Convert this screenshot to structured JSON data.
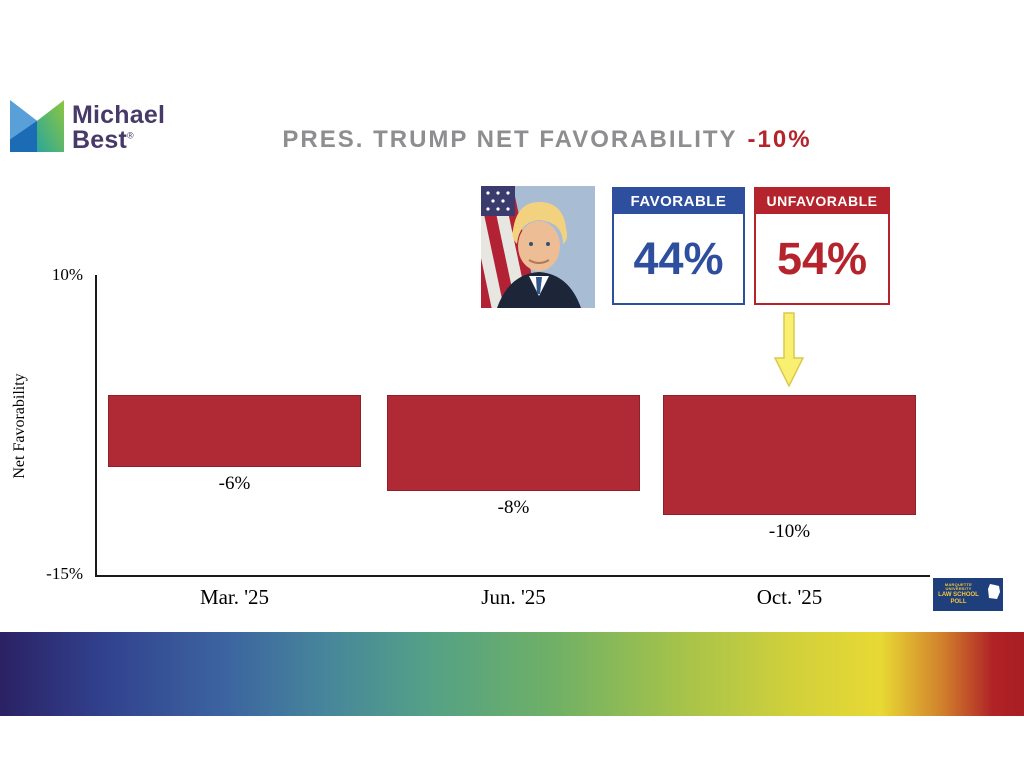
{
  "brand": {
    "line1": "Michael",
    "line2": "Best",
    "registered": "®"
  },
  "title": {
    "main": "PRES. TRUMP NET FAVORABILITY",
    "highlight": "-10%"
  },
  "favorability": {
    "favorable_label": "FAVORABLE",
    "favorable_value": "44%",
    "unfavorable_label": "UNFAVORABLE",
    "unfavorable_value": "54%"
  },
  "chart_data": {
    "type": "bar",
    "categories": [
      "Mar. '25",
      "Jun. '25",
      "Oct. '25"
    ],
    "values": [
      -6,
      -8,
      -10
    ],
    "value_labels": [
      "-6%",
      "-8%",
      "-10%"
    ],
    "title": "PRES. TRUMP NET FAVORABILITY -10%",
    "xlabel": "",
    "ylabel": "Net Favorability",
    "ylim": [
      -15,
      10
    ],
    "ytick_labels": [
      "10%",
      "-15%"
    ],
    "bar_color": "#b02a35",
    "grid": false,
    "legend": false
  },
  "footer_logo": {
    "line1": "MARQUETTE UNIVERSITY",
    "line2": "LAW SCHOOL POLL"
  },
  "colors": {
    "bar": "#b02a35",
    "favorable_blue": "#2e4e9e",
    "unfavorable_red": "#b5242c",
    "title_gray": "#8e8e90",
    "arrow_yellow": "#f9ef70",
    "brand_purple": "#473a68"
  }
}
